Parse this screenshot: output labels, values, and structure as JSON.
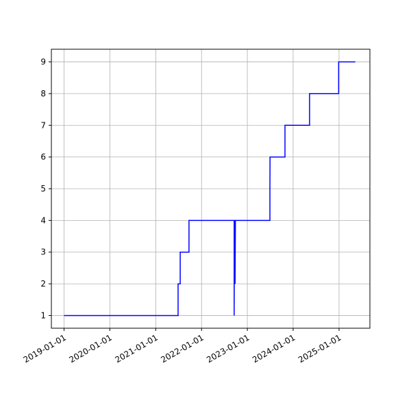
{
  "chart_data": {
    "type": "line",
    "x": [
      "2019-01-01",
      "2021-06-28",
      "2021-06-28",
      "2021-07-15",
      "2021-07-15",
      "2021-09-23",
      "2021-09-23",
      "2022-09-18",
      "2022-09-18",
      "2022-09-20",
      "2022-09-25",
      "2022-09-25",
      "2022-09-28",
      "2023-06-30",
      "2023-06-30",
      "2023-07-01",
      "2023-10-28",
      "2023-10-28",
      "2024-05-11",
      "2024-05-11",
      "2024-12-29",
      "2024-12-29",
      "2025-05-11"
    ],
    "series": [
      {
        "color": "#0000ff",
        "values": [
          1,
          1,
          2,
          2,
          3,
          3,
          4,
          4,
          1,
          4,
          4,
          2,
          4,
          4,
          5,
          6,
          6,
          7,
          7,
          8,
          8,
          9,
          9
        ]
      }
    ],
    "xlim": [
      "2018-09-22",
      "2025-09-04"
    ],
    "xticks": [
      "2019-01-01",
      "2020-01-01",
      "2021-01-01",
      "2022-01-01",
      "2023-01-01",
      "2024-01-01",
      "2025-01-01"
    ],
    "ylim": [
      0.6,
      9.4
    ],
    "yticks": [
      1,
      2,
      3,
      4,
      5,
      6,
      7,
      8,
      9
    ],
    "grid": true
  }
}
